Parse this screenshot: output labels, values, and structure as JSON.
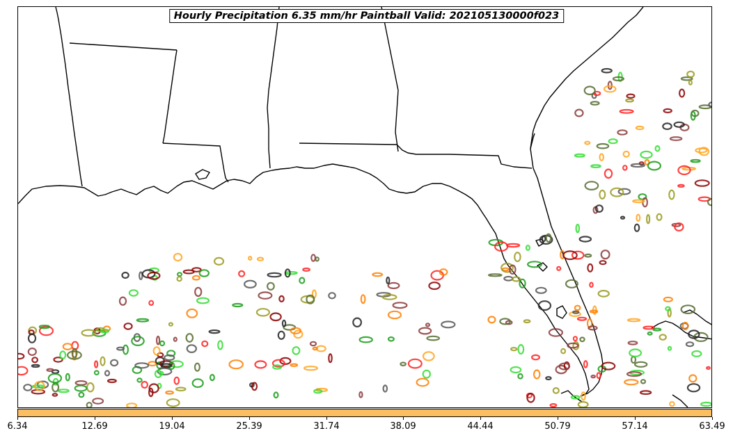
{
  "map": {
    "title": "Hourly Precipitation 6.35 mm/hr Paintball Valid: 202105130000f023",
    "member_colors": [
      "#8b0000",
      "#ff2020",
      "#ff7f00",
      "#ffa520",
      "#1a9c1a",
      "#33dd33",
      "#556b2f",
      "#9a9a20",
      "#222222",
      "#555555",
      "#8b3a3a"
    ]
  },
  "colorbar": {
    "color": "#fbbf62",
    "ticks": [
      "6.34",
      "12.69",
      "19.04",
      "25.39",
      "31.74",
      "38.09",
      "44.44",
      "50.79",
      "57.14",
      "63.49"
    ]
  }
}
